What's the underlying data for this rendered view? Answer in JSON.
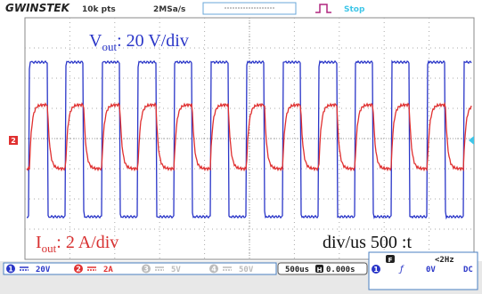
{
  "header": {
    "brand": "GWINSTEK",
    "points": "10k pts",
    "rate": "2MSa/s",
    "status": "Stop"
  },
  "annotations": {
    "voltage": {
      "symbol": "V",
      "subscript": "out",
      "scale": ": 20 V/div"
    },
    "current": {
      "symbol": "I",
      "subscript": "out",
      "scale": ": 2 A/div"
    },
    "time": "div/us 500 :t"
  },
  "channel_marker": "2",
  "footer": {
    "channels": [
      {
        "number": "1",
        "value": "20V"
      },
      {
        "number": "2",
        "value": "2A"
      },
      {
        "number": "3",
        "value": "5V"
      },
      {
        "number": "4",
        "value": "50V"
      }
    ],
    "timebase": "500us",
    "h_marker": "H",
    "position": "0.000s",
    "trigger": {
      "mode_marker": "F",
      "freq": "<2Hz",
      "source": "1",
      "level": "0V",
      "coupling": "DC"
    }
  }
}
